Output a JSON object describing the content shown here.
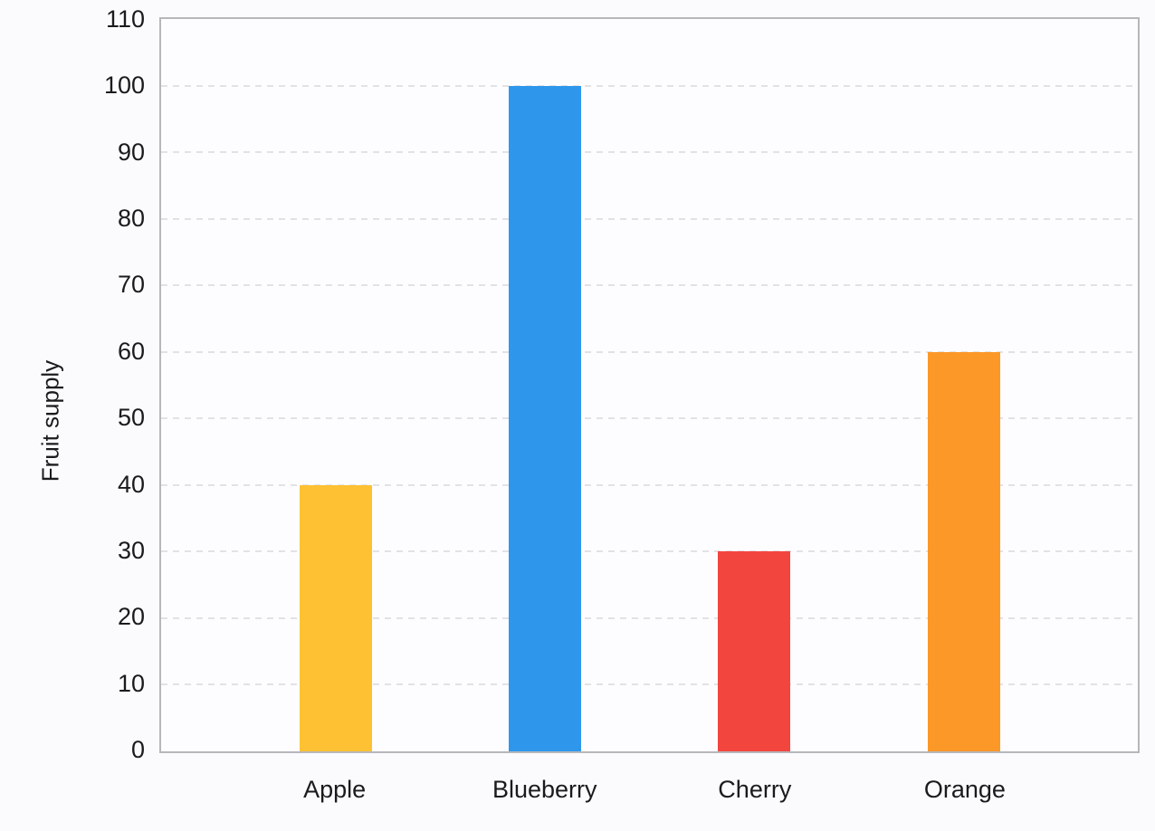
{
  "chart_data": {
    "type": "bar",
    "categories": [
      "Apple",
      "Blueberry",
      "Cherry",
      "Orange"
    ],
    "values": [
      40,
      100,
      30,
      60
    ],
    "bar_colors": [
      "#fdc133",
      "#2e97ec",
      "#f2453e",
      "#fb9827"
    ],
    "title": "",
    "xlabel": "",
    "ylabel": "Fruit supply",
    "ylim": [
      0,
      110
    ],
    "ytick_step": 10,
    "yticks": [
      0,
      10,
      20,
      30,
      40,
      50,
      60,
      70,
      80,
      90,
      100,
      110
    ],
    "grid": "horizontal-dashed",
    "legend_position": "none"
  },
  "theme": {
    "background": "#fbfbfe",
    "plot_background": "#fdfdff",
    "axis_border": "#b7b7bb",
    "gridline": "#e2e2e6",
    "text": "#1b1b1d"
  }
}
